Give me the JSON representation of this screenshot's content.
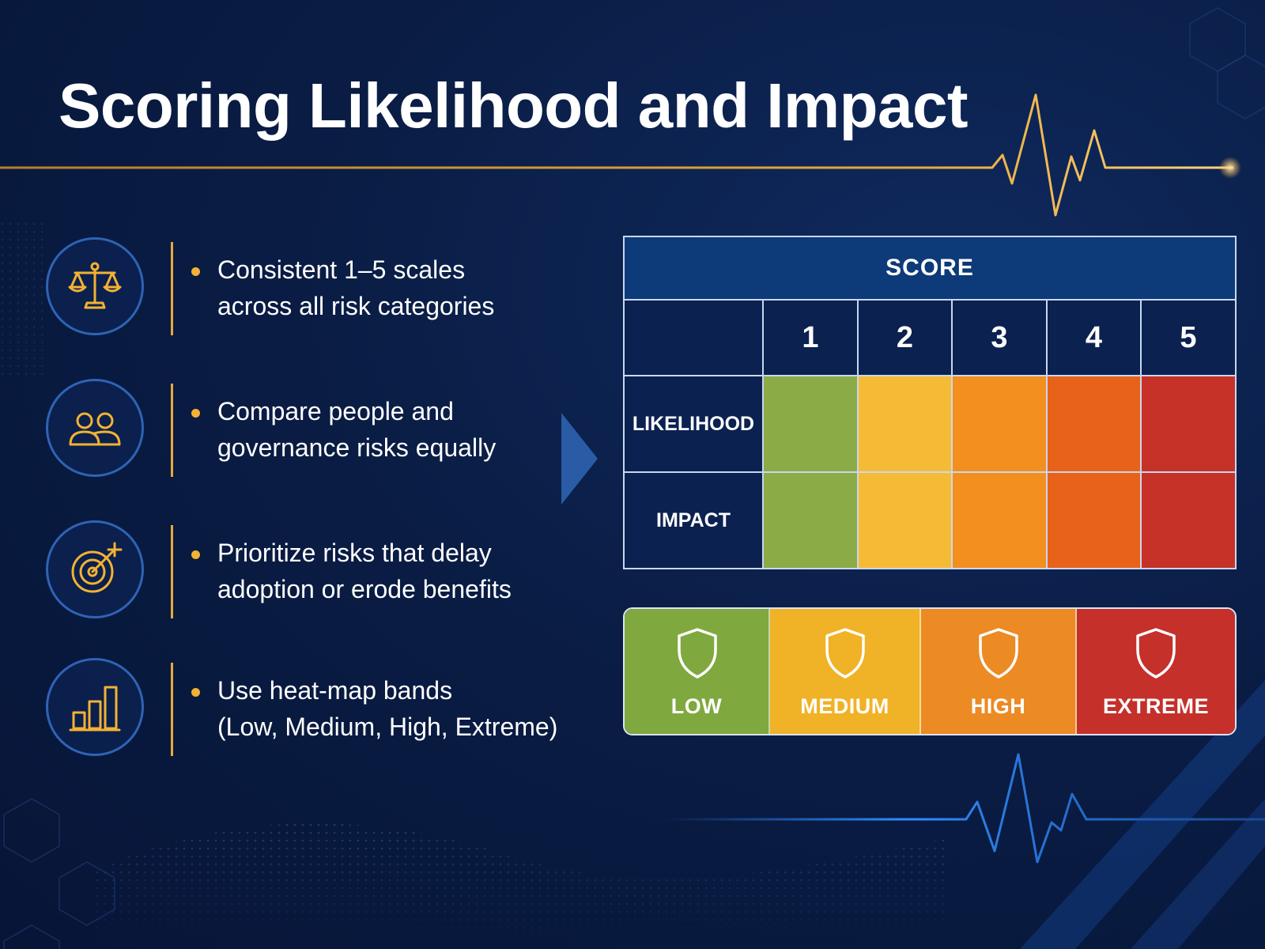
{
  "title": "Scoring Likelihood and Impact",
  "colors": {
    "background": "#0a1d45",
    "accent_gold": "#f2b233",
    "line_gold": "#e8a93a",
    "circle_blue": "#2f63b5",
    "table_header": "#0d3a78",
    "table_cell_dark": "#0b2150",
    "pulse_blue": "#2f8cff"
  },
  "bullets": [
    {
      "icon": "balance-scale-icon",
      "lines": [
        "Consistent 1–5 scales",
        "across all risk categories"
      ]
    },
    {
      "icon": "people-icon",
      "lines": [
        "Compare people and",
        "governance risks equally"
      ]
    },
    {
      "icon": "target-icon",
      "lines": [
        "Prioritize risks that delay",
        "adoption or erode benefits"
      ]
    },
    {
      "icon": "bar-chart-icon",
      "lines": [
        "Use heat-map bands",
        "(Low, Medium, High, Extreme)"
      ]
    }
  ],
  "score_table": {
    "header": "SCORE",
    "scores": [
      "1",
      "2",
      "3",
      "4",
      "5"
    ],
    "rows": [
      {
        "label": "LIKELIHOOD",
        "colors": [
          "#8aab46",
          "#f6bb34",
          "#f38f1e",
          "#e8621a",
          "#c63128"
        ]
      },
      {
        "label": "IMPACT",
        "colors": [
          "#8aab46",
          "#f6bb34",
          "#f38f1e",
          "#e8621a",
          "#c63128"
        ]
      }
    ]
  },
  "bands": [
    {
      "label": "LOW",
      "color": "#7fa83e",
      "icon": "shield-icon"
    },
    {
      "label": "MEDIUM",
      "color": "#f0b226",
      "icon": "shield-icon"
    },
    {
      "label": "HIGH",
      "color": "#ec8a24",
      "icon": "shield-icon"
    },
    {
      "label": "EXTREME",
      "color": "#c5302b",
      "icon": "shield-icon"
    }
  ]
}
